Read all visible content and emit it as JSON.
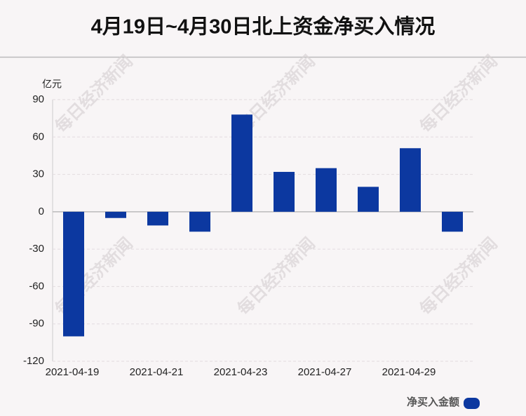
{
  "chart_data": {
    "type": "bar",
    "title": "4月19日~4月30日北上资金净买入情况",
    "y_label": "亿元",
    "watermark": "每日经济新闻",
    "categories": [
      "2021-04-19",
      null,
      "2021-04-21",
      null,
      "2021-04-23",
      null,
      "2021-04-27",
      null,
      "2021-04-29",
      null
    ],
    "series": [
      {
        "name": "净买入金额",
        "color": "#0c38a0",
        "values": [
          -100,
          -5,
          -11,
          -16,
          78,
          32,
          35,
          20,
          51,
          -16
        ]
      }
    ],
    "ylim": [
      -120,
      90
    ],
    "yticks": [
      -120,
      -90,
      -60,
      -30,
      0,
      30,
      60,
      90
    ],
    "grid": true,
    "legend": "bottom-right"
  }
}
